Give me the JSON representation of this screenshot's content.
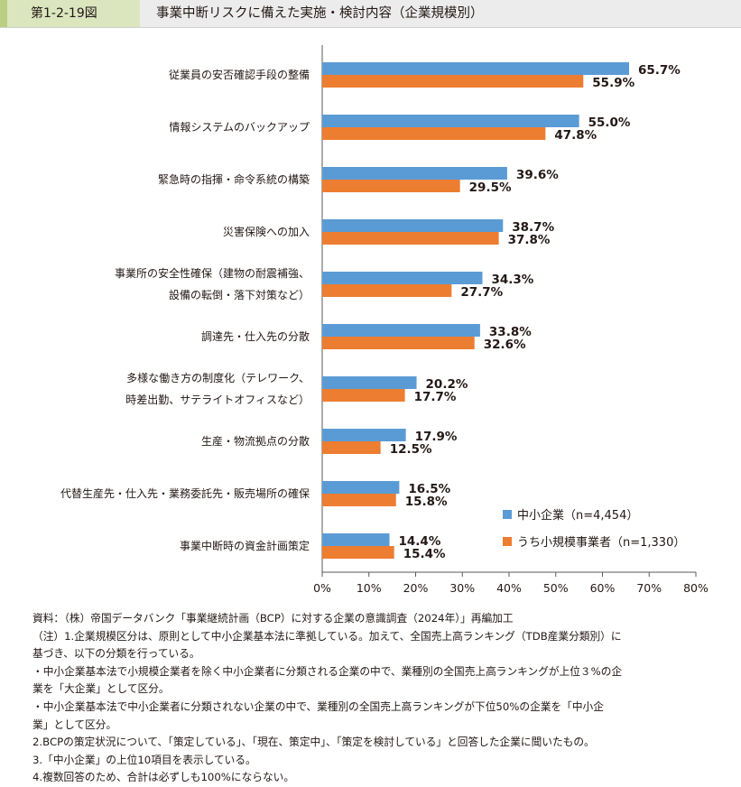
{
  "header": {
    "figure_number": "第1-2-19図",
    "title": "事業中断リスクに備えた実施・検討内容（企業規模別）"
  },
  "chart_data": {
    "type": "bar",
    "orientation": "horizontal",
    "categories": [
      [
        "従業員の安否確認手段の整備"
      ],
      [
        "情報システムのバックアップ"
      ],
      [
        "緊急時の指揮・命令系統の構築"
      ],
      [
        "災害保険への加入"
      ],
      [
        "事業所の安全性確保（建物の耐震補強、",
        "設備の転倒・落下対策など）"
      ],
      [
        "調達先・仕入先の分散"
      ],
      [
        "多様な働き方の制度化（テレワーク、",
        "時差出勤、サテライトオフィスなど）"
      ],
      [
        "生産・物流拠点の分散"
      ],
      [
        "代替生産先・仕入先・業務委託先・販売場所の確保"
      ],
      [
        "事業中断時の資金計画策定"
      ]
    ],
    "series": [
      {
        "name": "中小企業（n=4,454）",
        "color": "#5b9bd5",
        "values": [
          65.7,
          55.0,
          39.6,
          38.7,
          34.3,
          33.8,
          20.2,
          17.9,
          16.5,
          14.4
        ],
        "labels": [
          "65.7%",
          "55.0%",
          "39.6%",
          "38.7%",
          "34.3%",
          "33.8%",
          "20.2%",
          "17.9%",
          "16.5%",
          "14.4%"
        ]
      },
      {
        "name": "うち小規模事業者（n=1,330）",
        "color": "#ed7d31",
        "values": [
          55.9,
          47.8,
          29.5,
          37.8,
          27.7,
          32.6,
          17.7,
          12.5,
          15.8,
          15.4
        ],
        "labels": [
          "55.9%",
          "47.8%",
          "29.5%",
          "37.8%",
          "27.7%",
          "32.6%",
          "17.7%",
          "12.5%",
          "15.8%",
          "15.4%"
        ]
      }
    ],
    "xlim": [
      0,
      80
    ],
    "x_ticks": [
      "0%",
      "10%",
      "20%",
      "30%",
      "40%",
      "50%",
      "60%",
      "70%",
      "80%"
    ],
    "grid": false,
    "legend_position": "bottom-right"
  },
  "notes": [
    "資料：（株）帝国データバンク「事業継続計画（BCP）に対する企業の意識調査（2024年）」再編加工",
    "（注）1.企業規模区分は、原則として中小企業基本法に準拠している。加えて、全国売上高ランキング（TDB産業分類別）に",
    "基づき、以下の分類を行っている。",
    "・中小企業基本法で小規模企業者を除く中小企業者に分類される企業の中で、業種別の全国売上高ランキングが上位３%の企",
    "業を「大企業」として区分。",
    "・中小企業基本法で中小企業者に分類されない企業の中で、業種別の全国売上高ランキングが下位50%の企業を「中小企",
    "業」として区分。",
    "2.BCPの策定状況について、「策定している」、「現在、策定中」、「策定を検討している」と回答した企業に聞いたもの。",
    "3.「中小企業」の上位10項目を表示している。",
    "4.複数回答のため、合計は必ずしも100%にならない。"
  ]
}
